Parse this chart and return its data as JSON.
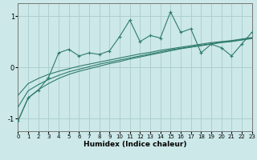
{
  "title": "",
  "xlabel": "Humidex (Indice chaleur)",
  "background_color": "#cce8e8",
  "line_color": "#2e7b6e",
  "grid_color": "#aacccc",
  "xlim": [
    0,
    23
  ],
  "ylim": [
    -1.25,
    1.25
  ],
  "xticks": [
    0,
    1,
    2,
    3,
    4,
    5,
    6,
    7,
    8,
    9,
    10,
    11,
    12,
    13,
    14,
    15,
    16,
    17,
    18,
    19,
    20,
    21,
    22,
    23
  ],
  "yticks": [
    -1,
    0,
    1
  ],
  "noisy_y": [
    -1.05,
    -0.6,
    -0.45,
    -0.2,
    0.28,
    0.35,
    0.22,
    0.28,
    0.25,
    0.32,
    0.6,
    0.92,
    0.5,
    0.62,
    0.57,
    1.08,
    0.68,
    0.75,
    0.28,
    0.45,
    0.38,
    0.22,
    0.45,
    0.68
  ],
  "smooth1_y": [
    -1.05,
    -0.6,
    -0.44,
    -0.32,
    -0.22,
    -0.14,
    -0.08,
    -0.03,
    0.02,
    0.07,
    0.11,
    0.16,
    0.2,
    0.24,
    0.28,
    0.32,
    0.36,
    0.39,
    0.42,
    0.45,
    0.48,
    0.5,
    0.53,
    0.56
  ],
  "smooth2_y": [
    -0.78,
    -0.46,
    -0.34,
    -0.24,
    -0.16,
    -0.09,
    -0.04,
    0.01,
    0.06,
    0.1,
    0.14,
    0.18,
    0.22,
    0.26,
    0.3,
    0.34,
    0.37,
    0.4,
    0.43,
    0.46,
    0.49,
    0.51,
    0.54,
    0.57
  ],
  "smooth3_y": [
    -0.55,
    -0.32,
    -0.22,
    -0.14,
    -0.08,
    -0.03,
    0.02,
    0.06,
    0.1,
    0.14,
    0.18,
    0.22,
    0.26,
    0.29,
    0.33,
    0.36,
    0.39,
    0.42,
    0.45,
    0.48,
    0.5,
    0.52,
    0.55,
    0.58
  ]
}
